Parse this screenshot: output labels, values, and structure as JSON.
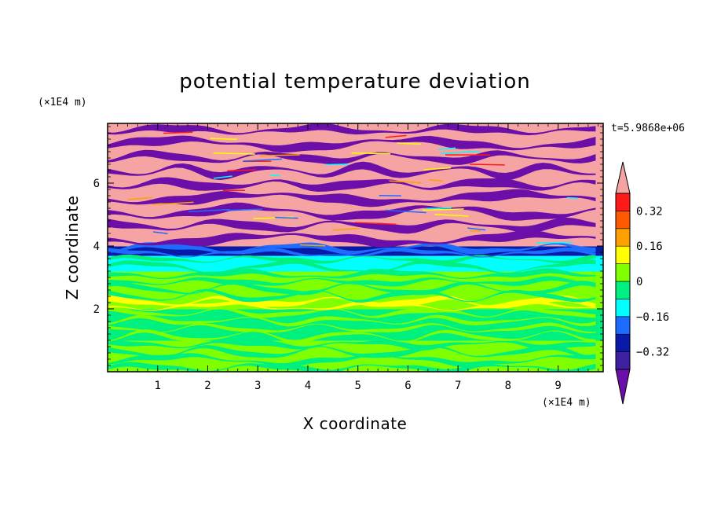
{
  "chart_data": {
    "type": "heatmap",
    "title": "potential temperature deviation",
    "xlabel": "X coordinate",
    "ylabel": "Z coordinate",
    "x_unit": "(×1E4 m)",
    "y_unit": "(×1E4 m)",
    "time_label": "t=5.9868e+06",
    "xlim": [
      0,
      9.9
    ],
    "ylim": [
      0,
      7.9
    ],
    "x_ticks": [
      1,
      2,
      3,
      4,
      5,
      6,
      7,
      8,
      9
    ],
    "y_ticks": [
      2,
      4,
      6
    ],
    "colorbar": {
      "levels": [
        -0.4,
        -0.32,
        -0.24,
        -0.16,
        -0.08,
        0,
        0.08,
        0.16,
        0.24,
        0.32,
        0.4
      ],
      "labeled_ticks": [
        -0.32,
        -0.16,
        0,
        0.16,
        0.32
      ],
      "colors": [
        "#6b0fa8",
        "#3d1fa0",
        "#0a1aa8",
        "#1e6cff",
        "#00ffff",
        "#00f080",
        "#80ff00",
        "#ffff00",
        "#ffa000",
        "#ff5a00",
        "#ff1a1a",
        "#f5a3a3"
      ],
      "extend": "both"
    },
    "bands": [
      {
        "z": [
          0.0,
          1.0
        ],
        "dominant": "#80ff00",
        "secondary": "#00f080"
      },
      {
        "z": [
          1.0,
          2.0
        ],
        "dominant": "#00f080",
        "secondary": "#80ff00"
      },
      {
        "z": [
          2.0,
          2.3
        ],
        "dominant": "#80ff00",
        "secondary": "#ffff00"
      },
      {
        "z": [
          2.3,
          3.2
        ],
        "dominant": "#80ff00",
        "secondary": "#00f080"
      },
      {
        "z": [
          3.2,
          3.7
        ],
        "dominant": "#00ffff",
        "secondary": "#00f080"
      },
      {
        "z": [
          3.7,
          4.0
        ],
        "dominant": "#0a1aa8",
        "secondary": "#1e6cff"
      },
      {
        "z": [
          4.0,
          7.9
        ],
        "dominant": "#f5a3a3",
        "secondary": "#6b0fa8"
      }
    ]
  }
}
